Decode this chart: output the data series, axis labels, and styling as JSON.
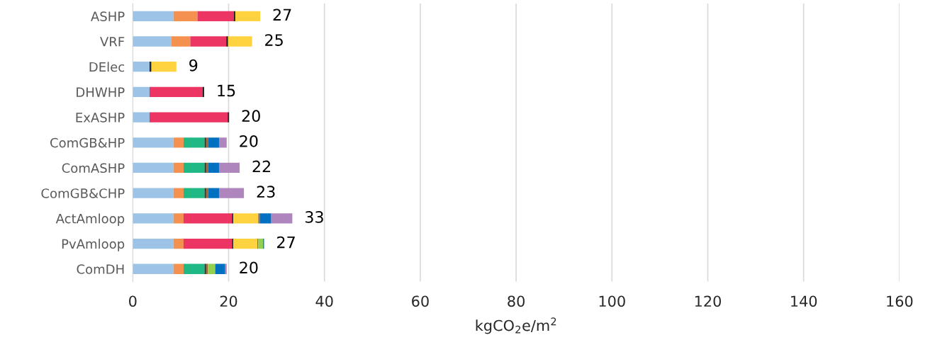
{
  "chart_data": {
    "type": "bar",
    "orientation": "horizontal",
    "stacked": true,
    "xlabel": "kgCO$_{2}$e/m$^{2}$",
    "categories": [
      "ASHP",
      "VRF",
      "DElec",
      "DHWHP",
      "ExASHP",
      "ComGB&HP",
      "ComASHP",
      "ComGB&CHP",
      "ActAmloop",
      "PvAmloop",
      "ComDH"
    ],
    "series": [
      {
        "color": "#9dc3e6",
        "values": [
          8.5,
          8.0,
          3.5,
          3.5,
          3.5,
          8.5,
          8.5,
          8.5,
          8.5,
          8.5,
          8.5
        ]
      },
      {
        "color": "#f4914e",
        "values": [
          5.0,
          4.0,
          null,
          null,
          null,
          2.1,
          2.1,
          2.1,
          2.1,
          2.1,
          2.1
        ]
      },
      {
        "color": "#20b985",
        "values": [
          null,
          null,
          null,
          null,
          null,
          4.4,
          4.4,
          4.4,
          null,
          null,
          4.4
        ]
      },
      {
        "color": "#ec3563",
        "values": [
          7.6,
          7.5,
          null,
          11.1,
          16.3,
          null,
          null,
          null,
          10.1,
          10.1,
          null
        ]
      },
      {
        "color": "#262626",
        "values": [
          0.3,
          0.4,
          0.4,
          0.3,
          0.3,
          0.3,
          0.3,
          0.3,
          0.3,
          0.3,
          0.3
        ]
      },
      {
        "color": "#ffd23f",
        "values": [
          5.2,
          5.0,
          5.2,
          null,
          null,
          null,
          null,
          null,
          5.2,
          5.0,
          null
        ]
      },
      {
        "color": "#a0622d",
        "values": [
          null,
          null,
          null,
          null,
          null,
          0.4,
          0.4,
          0.4,
          0.3,
          0.2,
          0.4
        ]
      },
      {
        "color": "#92d050",
        "values": [
          null,
          null,
          null,
          null,
          null,
          null,
          null,
          null,
          null,
          1.0,
          1.5
        ]
      },
      {
        "color": "#0070c0",
        "values": [
          null,
          null,
          null,
          null,
          null,
          2.3,
          2.3,
          2.3,
          2.4,
          0.2,
          2.1
        ]
      },
      {
        "color": "#ae85bd",
        "values": [
          null,
          null,
          null,
          null,
          null,
          1.6,
          4.3,
          5.2,
          4.4,
          null,
          0.3
        ]
      }
    ],
    "totals": [
      "27",
      "25",
      "9",
      "15",
      "20",
      "20",
      "22",
      "23",
      "33",
      "27",
      "20"
    ],
    "xlim": [
      0,
      160
    ],
    "xticks": [
      0,
      20,
      40,
      60,
      80,
      100,
      120,
      140,
      160
    ],
    "grid": "x"
  }
}
